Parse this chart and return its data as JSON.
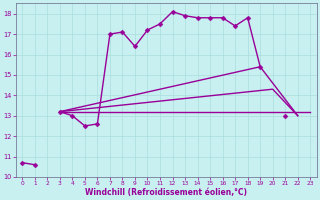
{
  "title": "",
  "xlabel": "Windchill (Refroidissement éolien,°C)",
  "bg_color": "#c8f0f0",
  "grid_color": "#aadddd",
  "line_color": "#990099",
  "spine_color": "#666688",
  "xlim": [
    -0.5,
    23.5
  ],
  "ylim": [
    10,
    18.5
  ],
  "xticks": [
    0,
    1,
    2,
    3,
    4,
    5,
    6,
    7,
    8,
    9,
    10,
    11,
    12,
    13,
    14,
    15,
    16,
    17,
    18,
    19,
    20,
    21,
    22,
    23
  ],
  "yticks": [
    10,
    11,
    12,
    13,
    14,
    15,
    16,
    17,
    18
  ],
  "main_series": {
    "x": [
      0,
      1,
      3,
      4,
      5,
      6,
      7,
      8,
      9,
      10,
      11,
      12,
      13,
      14,
      15,
      16,
      17,
      18,
      19,
      21
    ],
    "y": [
      10.7,
      10.6,
      13.2,
      13.0,
      12.5,
      12.6,
      17.0,
      17.1,
      16.4,
      17.2,
      17.5,
      18.1,
      17.9,
      17.8,
      17.8,
      17.8,
      17.4,
      17.8,
      15.4,
      13.0
    ],
    "gaps_after": [
      1,
      2,
      19
    ],
    "linewidth": 1.0,
    "markersize": 2.5
  },
  "line1": {
    "x": [
      3,
      23
    ],
    "y": [
      13.2,
      13.2
    ],
    "linewidth": 1.0
  },
  "line2": {
    "comment": "diagonal line from (3,13.2) to (19,15.4) to (22,13.0)",
    "x": [
      3,
      19,
      22
    ],
    "y": [
      13.2,
      15.4,
      13.0
    ],
    "linewidth": 1.0
  },
  "line3": {
    "comment": "diagonal line from (3,13.2) to (20,14.3) to (22,13.0)",
    "x": [
      3,
      20,
      22
    ],
    "y": [
      13.2,
      14.3,
      13.0
    ],
    "linewidth": 1.0
  }
}
